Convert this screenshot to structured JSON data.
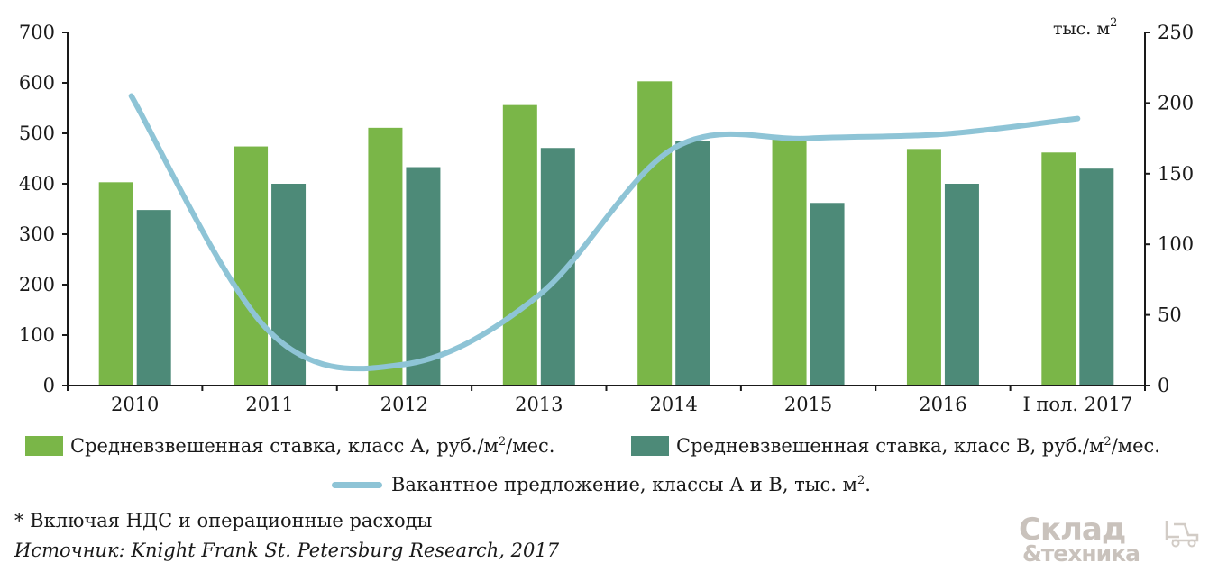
{
  "chart_data": {
    "type": "bar",
    "categories": [
      "2010",
      "2011",
      "2012",
      "2013",
      "2014",
      "2015",
      "2016",
      "I пол. 2017"
    ],
    "left_axis": {
      "ylim": [
        0,
        700
      ],
      "ticks": [
        "0",
        "100",
        "200",
        "300",
        "400",
        "500",
        "600",
        "700"
      ]
    },
    "right_axis": {
      "ylim": [
        0,
        250
      ],
      "ticks": [
        "0",
        "50",
        "100",
        "150",
        "200",
        "250"
      ],
      "unit_label": "тыс. м",
      "unit_sup": "2"
    },
    "series": [
      {
        "name": "Средневзвешенная ставка, класс А, руб./м²/мес.",
        "type": "bar",
        "axis": "left",
        "color": "#7ab648",
        "values": [
          403,
          474,
          511,
          556,
          603,
          490,
          469,
          462
        ]
      },
      {
        "name": "Средневзвешенная ставка, класс В, руб./м²/мес.",
        "type": "bar",
        "axis": "left",
        "color": "#4d8a78",
        "values": [
          348,
          400,
          433,
          471,
          485,
          362,
          400,
          430
        ]
      },
      {
        "name": "Вакантное предложение, классы А и В, тыс. м².",
        "type": "line",
        "axis": "right",
        "color": "#8ec4d6",
        "values": [
          205,
          38,
          15,
          64,
          168,
          175,
          178,
          189
        ]
      }
    ],
    "grid": false,
    "legend": "bottom"
  },
  "legend": {
    "a_text": "Средневзвешенная ставка, класс А, руб./м",
    "a_sup": "2",
    "a_tail": "/мес.",
    "b_text": "Средневзвешенная ставка, класс В, руб./м",
    "b_sup": "2",
    "b_tail": "/мес.",
    "line_text": "Вакантное предложение, классы А и В, тыс. м",
    "line_sup": "2",
    "line_tail": "."
  },
  "footnote": "* Включая НДС и операционные расходы",
  "source": "Источник: Knight Frank St. Petersburg Research, 2017",
  "logo": {
    "top": "Склад",
    "bottom": "&техника"
  }
}
